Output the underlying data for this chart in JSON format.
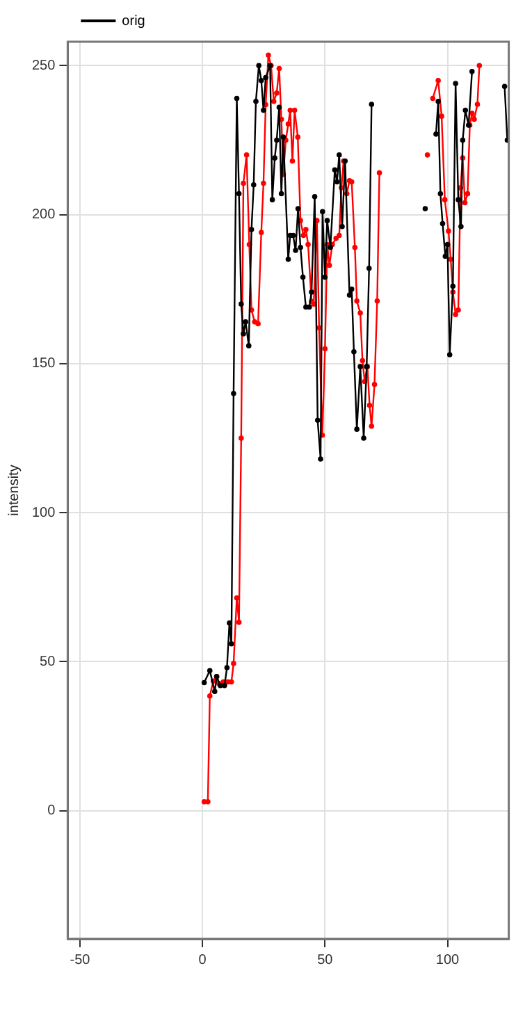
{
  "chart_data": {
    "type": "line",
    "ylabel": "intensity",
    "xlim": [
      -55,
      125
    ],
    "ylim": [
      -43,
      258
    ],
    "xticks": [
      -50,
      0,
      50,
      100
    ],
    "yticks": [
      0,
      50,
      100,
      150,
      200,
      250
    ],
    "grid": true,
    "legend": "top left",
    "marker": "circle",
    "line_style": "solid",
    "series": [
      {
        "name": "orig",
        "color": "#000000",
        "x": [
          0.7,
          3,
          5,
          5.8,
          7.3,
          9,
          10,
          11,
          11.8,
          12.7,
          14,
          14.9,
          15.8,
          16.7,
          17.6,
          18.9,
          20,
          20.9,
          21.8,
          23,
          24,
          24.9,
          25.8,
          27.6,
          28.5,
          29.5,
          30.3,
          31.3,
          32.2,
          33,
          35,
          35.8,
          37,
          38,
          39,
          40,
          41,
          42.2,
          43.6,
          44.5,
          45.8,
          47,
          48.2,
          49,
          50,
          50.9,
          52.2,
          54,
          54.9,
          55.8,
          57,
          58.2,
          60,
          60.9,
          61.8,
          63,
          64.4,
          65.8,
          67,
          68,
          69,
          80,
          90.9,
          92.5,
          95.3,
          96.2,
          97.1,
          98,
          99.1,
          100,
          100.9,
          102.2,
          103.3,
          104.4,
          105.5,
          106.2,
          107.3,
          108.6,
          110,
          117,
          123.3,
          124.4
        ],
        "values": [
          43,
          47,
          40,
          45,
          42,
          42,
          48,
          63,
          56,
          140,
          239,
          207,
          170,
          160,
          164,
          156,
          195,
          210,
          238,
          250,
          245,
          235,
          246,
          250,
          205,
          219,
          225,
          236,
          207,
          226,
          185,
          193,
          193,
          188,
          202,
          189,
          179,
          169,
          169,
          174,
          206,
          131,
          118,
          201,
          179,
          198,
          189,
          215,
          211,
          220,
          196,
          218,
          173,
          175,
          154,
          128,
          149,
          125,
          149,
          182,
          237,
          null,
          202,
          null,
          227,
          238,
          207,
          197,
          186,
          190,
          153,
          176,
          244,
          205,
          196,
          225,
          235,
          230,
          248,
          null,
          243,
          225
        ]
      },
      {
        "color": "#ff0000",
        "x": [
          0.7,
          2.2,
          3,
          4.4,
          5.8,
          6.7,
          8.5,
          10.4,
          11.8,
          12.7,
          14,
          14.9,
          15.8,
          16.7,
          18,
          19.1,
          20,
          21.3,
          22.7,
          24,
          24.9,
          25.8,
          26.9,
          28,
          29.1,
          30.3,
          31.3,
          32.2,
          33,
          34,
          35,
          35.8,
          36.7,
          37.6,
          38.9,
          40,
          41.2,
          42.2,
          43.1,
          44.5,
          45.4,
          46.7,
          47.6,
          48.9,
          50,
          50.9,
          51.8,
          53,
          54.5,
          55.8,
          56.7,
          57.6,
          58.9,
          60,
          60.9,
          62.2,
          63,
          64.4,
          65.3,
          66.2,
          67.3,
          68.2,
          69,
          70.2,
          71.3,
          72.2,
          82,
          91.8,
          93,
          94,
          96.2,
          97.6,
          98.9,
          100.4,
          101.3,
          102.2,
          103.3,
          104.4,
          105.3,
          106.2,
          107.1,
          108.2,
          109.1,
          110,
          110.9,
          112.2,
          113
        ],
        "values": [
          3,
          3,
          38.5,
          43.5,
          45,
          42.7,
          43.2,
          43.2,
          43.2,
          49.4,
          71.4,
          63.2,
          125,
          210.5,
          220,
          190,
          168,
          164,
          163.4,
          194,
          210.5,
          236.9,
          253.5,
          250,
          238,
          240.8,
          249,
          232,
          213.5,
          225,
          230.4,
          235,
          218,
          235,
          226,
          198,
          193,
          195,
          190,
          170.9,
          170,
          198,
          162,
          126,
          155,
          190,
          183,
          190,
          192,
          193,
          209,
          218,
          207,
          211.4,
          211,
          189,
          171,
          167,
          151,
          144,
          149,
          136,
          129,
          143,
          171,
          214,
          null,
          220,
          null,
          239,
          245,
          233,
          205,
          194.5,
          185,
          174,
          166.5,
          168,
          209,
          219,
          204,
          207,
          230,
          234,
          232,
          237,
          250
        ]
      }
    ]
  }
}
